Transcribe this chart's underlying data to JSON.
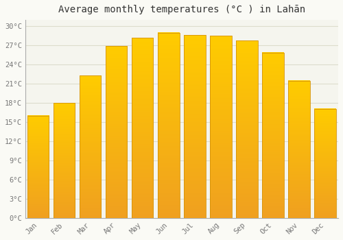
{
  "title": "Average monthly temperatures (°C ) in Lahān",
  "months": [
    "Jan",
    "Feb",
    "Mar",
    "Apr",
    "May",
    "Jun",
    "Jul",
    "Aug",
    "Sep",
    "Oct",
    "Nov",
    "Dec"
  ],
  "values": [
    16.0,
    18.0,
    22.3,
    26.9,
    28.2,
    29.0,
    28.6,
    28.5,
    27.8,
    25.9,
    21.5,
    17.1
  ],
  "bar_color_bottom": "#F0A020",
  "bar_color_top": "#FFCC00",
  "bar_edge_color": "#D4920A",
  "background_color": "#FAFAF5",
  "plot_bg_color": "#F5F5EE",
  "grid_color": "#DDDDCC",
  "title_color": "#333333",
  "tick_label_color": "#777777",
  "spine_color": "#AAAAAA",
  "ylim": [
    0,
    31
  ],
  "yticks": [
    0,
    3,
    6,
    9,
    12,
    15,
    18,
    21,
    24,
    27,
    30
  ],
  "ytick_labels": [
    "0°C",
    "3°C",
    "6°C",
    "9°C",
    "12°C",
    "15°C",
    "18°C",
    "21°C",
    "24°C",
    "27°C",
    "30°C"
  ],
  "title_fontsize": 10,
  "tick_fontsize": 7.5,
  "bar_width": 0.82
}
